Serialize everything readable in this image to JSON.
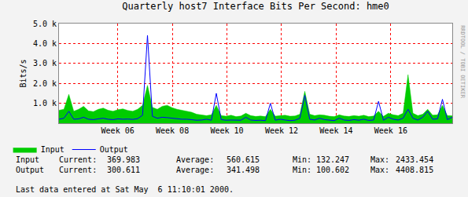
{
  "chart_data": {
    "type": "line",
    "title": "Quarterly host7 Interface Bits Per Second: hme0",
    "y_label": "Bits/s",
    "side_text": "RRDTOOL / TOBI OETIKER",
    "footnote": "Last data entered at Sat May  6 11:10:01 2000.",
    "stat_labels": [
      "Current:",
      "Average:",
      "Min:",
      "Max:"
    ],
    "x": [
      3.85,
      4.03,
      4.21,
      4.39,
      4.57,
      4.75,
      4.93,
      5.11,
      5.29,
      5.47,
      5.65,
      5.83,
      6.01,
      6.19,
      6.37,
      6.55,
      6.73,
      6.91,
      7.09,
      7.27,
      7.45,
      7.63,
      7.81,
      7.99,
      8.17,
      8.35,
      8.53,
      8.71,
      8.89,
      9.07,
      9.25,
      9.43,
      9.61,
      9.79,
      9.97,
      10.15,
      10.33,
      10.51,
      10.69,
      10.87,
      11.05,
      11.23,
      11.41,
      11.59,
      11.77,
      11.95,
      12.13,
      12.31,
      12.49,
      12.67,
      12.85,
      13.03,
      13.21,
      13.39,
      13.57,
      13.75,
      13.93,
      14.11,
      14.29,
      14.47,
      14.65,
      14.83,
      15.01,
      15.19,
      15.37,
      15.55,
      15.73,
      15.91,
      16.09,
      16.27,
      16.45,
      16.63,
      16.81,
      16.99,
      17.17,
      17.35,
      17.53,
      17.71,
      17.89,
      18.07,
      18.25
    ],
    "series": [
      {
        "name": "Input",
        "color": "#00cc00",
        "type": "area",
        "stats": [
          369.983,
          560.615,
          132.247,
          2433.454
        ],
        "values": [
          650,
          700,
          1450,
          600,
          700,
          850,
          620,
          580,
          700,
          760,
          650,
          600,
          680,
          720,
          640,
          600,
          700,
          900,
          1900,
          800,
          700,
          850,
          900,
          780,
          700,
          650,
          600,
          550,
          450,
          400,
          380,
          420,
          900,
          380,
          350,
          400,
          330,
          360,
          500,
          380,
          340,
          360,
          330,
          700,
          350,
          380,
          400,
          350,
          360,
          450,
          1600,
          450,
          380,
          420,
          400,
          350,
          330,
          420,
          360,
          340,
          380,
          350,
          400,
          330,
          360,
          600,
          340,
          500,
          420,
          380,
          500,
          2433,
          500,
          380,
          450,
          700,
          400,
          420,
          900,
          380,
          370
        ]
      },
      {
        "name": "Output",
        "color": "#0000ff",
        "type": "line",
        "stats": [
          300.611,
          341.498,
          100.602,
          4408.815
        ],
        "values": [
          200,
          250,
          600,
          200,
          220,
          300,
          200,
          180,
          220,
          250,
          200,
          180,
          220,
          200,
          210,
          190,
          230,
          400,
          4409,
          350,
          250,
          300,
          280,
          250,
          220,
          200,
          200,
          180,
          150,
          160,
          200,
          150,
          1500,
          180,
          150,
          160,
          140,
          150,
          300,
          160,
          140,
          150,
          130,
          1000,
          150,
          200,
          160,
          130,
          150,
          250,
          1400,
          200,
          160,
          250,
          180,
          140,
          130,
          250,
          160,
          140,
          180,
          150,
          200,
          140,
          160,
          1100,
          150,
          300,
          200,
          160,
          250,
          700,
          250,
          160,
          300,
          600,
          200,
          220,
          1200,
          180,
          301
        ]
      }
    ],
    "xlim": [
      3.85,
      18.25
    ],
    "xticks": [
      {
        "value": 6,
        "label": "Week 06"
      },
      {
        "value": 8,
        "label": "Week 08"
      },
      {
        "value": 10,
        "label": "Week 10"
      },
      {
        "value": 12,
        "label": "Week 12"
      },
      {
        "value": 14,
        "label": "Week 14"
      },
      {
        "value": 16,
        "label": "Week 16"
      }
    ],
    "ylim": [
      0,
      5000
    ],
    "yticks": [
      {
        "value": 1000,
        "label": "1.0 k"
      },
      {
        "value": 2000,
        "label": "2.0 k"
      },
      {
        "value": 3000,
        "label": "3.0 k"
      },
      {
        "value": 4000,
        "label": "4.0 k"
      },
      {
        "value": 5000,
        "label": "5.0 k"
      }
    ],
    "grid": true,
    "legend": "bottom left"
  }
}
